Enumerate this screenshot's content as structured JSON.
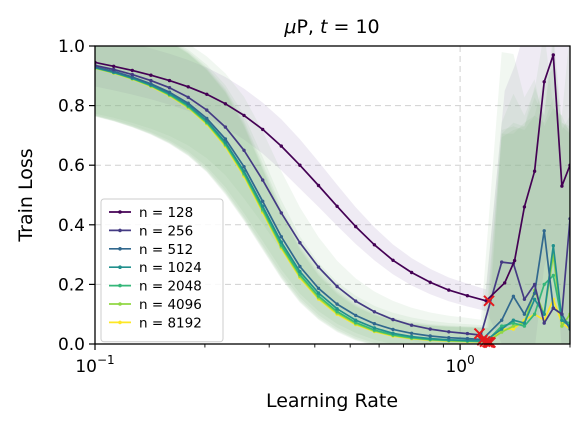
{
  "chart_data": {
    "type": "line",
    "title": "μP, t = 10",
    "title_parts": {
      "symbol": "μ",
      "rest": "P, ",
      "var": "t",
      "eq": " = 10"
    },
    "xlabel": "Learning Rate",
    "ylabel": "Train Loss",
    "xscale": "log",
    "xlim": [
      0.1,
      2.0
    ],
    "ylim": [
      0.0,
      1.0
    ],
    "xticks_major": [
      {
        "value": 0.1,
        "base": "10",
        "exp": "−1"
      },
      {
        "value": 1.0,
        "base": "10",
        "exp": "0"
      }
    ],
    "yticks": [
      "0.0",
      "0.2",
      "0.4",
      "0.6",
      "0.8",
      "1.0"
    ],
    "grid": true,
    "legend_position": "lower-left",
    "divergence_marker_color": "#e41a1c",
    "band_color": "#8fbf8f",
    "series": [
      {
        "name": "n = 128",
        "color": "#440154",
        "x": [
          0.1,
          0.1125,
          0.1265,
          0.1423,
          0.16,
          0.18,
          0.2024,
          0.2276,
          0.256,
          0.2879,
          0.3237,
          0.364,
          0.4094,
          0.4604,
          0.5178,
          0.5823,
          0.6548,
          0.7364,
          0.8282,
          0.9314,
          1.047,
          1.178,
          1.325,
          1.41,
          1.5,
          1.6,
          1.7,
          1.8,
          1.9,
          2.0
        ],
        "y": [
          0.945,
          0.932,
          0.918,
          0.902,
          0.884,
          0.863,
          0.838,
          0.806,
          0.767,
          0.72,
          0.664,
          0.6,
          0.532,
          0.462,
          0.394,
          0.333,
          0.281,
          0.24,
          0.207,
          0.181,
          0.162,
          0.145,
          0.205,
          0.28,
          0.46,
          0.58,
          0.88,
          0.97,
          0.53,
          0.6
        ],
        "diverge": {
          "x": 1.2,
          "y": 0.145
        }
      },
      {
        "name": "n = 256",
        "color": "#443a83",
        "x": [
          0.1,
          0.1125,
          0.1265,
          0.1423,
          0.16,
          0.18,
          0.2024,
          0.2276,
          0.256,
          0.2879,
          0.3237,
          0.364,
          0.4094,
          0.4604,
          0.5178,
          0.5823,
          0.6548,
          0.7364,
          0.8282,
          0.9314,
          1.047,
          1.14,
          1.3,
          1.4,
          1.5,
          1.6,
          1.7,
          1.8,
          1.9,
          2.0
        ],
        "y": [
          0.935,
          0.921,
          0.904,
          0.884,
          0.86,
          0.828,
          0.785,
          0.728,
          0.65,
          0.55,
          0.44,
          0.34,
          0.258,
          0.193,
          0.144,
          0.108,
          0.082,
          0.063,
          0.05,
          0.041,
          0.035,
          0.03,
          0.275,
          0.27,
          0.15,
          0.2,
          0.07,
          0.12,
          0.1,
          0.42
        ],
        "diverge": {
          "x": 1.13,
          "y": 0.035
        }
      },
      {
        "name": "n = 512",
        "color": "#31688e",
        "x": [
          0.1,
          0.1125,
          0.1265,
          0.1423,
          0.16,
          0.18,
          0.2024,
          0.2276,
          0.256,
          0.2879,
          0.3237,
          0.364,
          0.4094,
          0.4604,
          0.5178,
          0.5823,
          0.6548,
          0.7364,
          0.8282,
          0.9314,
          1.047,
          1.15,
          1.3,
          1.4,
          1.5,
          1.6,
          1.7,
          1.8,
          1.9,
          2.0
        ],
        "y": [
          0.93,
          0.915,
          0.896,
          0.873,
          0.845,
          0.808,
          0.757,
          0.688,
          0.595,
          0.479,
          0.36,
          0.26,
          0.187,
          0.134,
          0.096,
          0.068,
          0.049,
          0.036,
          0.027,
          0.021,
          0.018,
          0.015,
          0.08,
          0.16,
          0.1,
          0.17,
          0.38,
          0.12,
          0.1,
          0.05
        ],
        "diverge": {
          "x": 1.15,
          "y": 0.013
        }
      },
      {
        "name": "n = 1024",
        "color": "#21908d",
        "x": [
          0.1,
          0.1125,
          0.1265,
          0.1423,
          0.16,
          0.18,
          0.2024,
          0.2276,
          0.256,
          0.2879,
          0.3237,
          0.364,
          0.4094,
          0.4604,
          0.5178,
          0.5823,
          0.6548,
          0.7364,
          0.8282,
          0.9314,
          1.047,
          1.17,
          1.3,
          1.4,
          1.5,
          1.6,
          1.7,
          1.8,
          1.9,
          2.0
        ],
        "y": [
          0.928,
          0.912,
          0.893,
          0.869,
          0.84,
          0.802,
          0.749,
          0.677,
          0.58,
          0.462,
          0.342,
          0.243,
          0.171,
          0.118,
          0.08,
          0.054,
          0.036,
          0.025,
          0.018,
          0.014,
          0.012,
          0.01,
          0.05,
          0.08,
          0.07,
          0.15,
          0.1,
          0.33,
          0.08,
          0.06
        ],
        "diverge": {
          "x": 1.17,
          "y": 0.008
        }
      },
      {
        "name": "n = 2048",
        "color": "#35b779",
        "x": [
          0.1,
          0.1125,
          0.1265,
          0.1423,
          0.16,
          0.18,
          0.2024,
          0.2276,
          0.256,
          0.2879,
          0.3237,
          0.364,
          0.4094,
          0.4604,
          0.5178,
          0.5823,
          0.6548,
          0.7364,
          0.8282,
          0.9314,
          1.047,
          1.18,
          1.3,
          1.4,
          1.5,
          1.6,
          1.7,
          1.8,
          1.9,
          2.0
        ],
        "y": [
          0.927,
          0.911,
          0.891,
          0.867,
          0.837,
          0.798,
          0.744,
          0.671,
          0.573,
          0.453,
          0.332,
          0.233,
          0.161,
          0.109,
          0.072,
          0.047,
          0.031,
          0.021,
          0.015,
          0.012,
          0.01,
          0.008,
          0.06,
          0.07,
          0.06,
          0.1,
          0.2,
          0.23,
          0.08,
          0.07
        ],
        "diverge": {
          "x": 1.19,
          "y": 0.006
        }
      },
      {
        "name": "n = 4096",
        "color": "#90d743",
        "x": [
          0.1,
          0.1125,
          0.1265,
          0.1423,
          0.16,
          0.18,
          0.2024,
          0.2276,
          0.256,
          0.2879,
          0.3237,
          0.364,
          0.4094,
          0.4604,
          0.5178,
          0.5823,
          0.6548,
          0.7364,
          0.8282,
          0.9314,
          1.047,
          1.19,
          1.3,
          1.4,
          1.5,
          1.6,
          1.7,
          1.8,
          1.9,
          2.0
        ],
        "y": [
          0.926,
          0.91,
          0.89,
          0.866,
          0.835,
          0.795,
          0.741,
          0.667,
          0.568,
          0.447,
          0.326,
          0.227,
          0.155,
          0.104,
          0.068,
          0.044,
          0.029,
          0.019,
          0.014,
          0.011,
          0.009,
          0.008,
          0.04,
          0.06,
          0.07,
          0.18,
          0.1,
          0.3,
          0.06,
          0.1
        ],
        "diverge": {
          "x": 1.2,
          "y": 0.005
        }
      },
      {
        "name": "n = 8192",
        "color": "#fde725",
        "x": [
          0.1,
          0.1125,
          0.1265,
          0.1423,
          0.16,
          0.18,
          0.2024,
          0.2276,
          0.256,
          0.2879,
          0.3237,
          0.364,
          0.4094,
          0.4604,
          0.5178,
          0.5823,
          0.6548,
          0.7364,
          0.8282,
          0.9314,
          1.047,
          1.2,
          1.3,
          1.4,
          1.5,
          1.6,
          1.7,
          1.8,
          1.9,
          2.0
        ],
        "y": [
          0.925,
          0.909,
          0.889,
          0.864,
          0.833,
          0.793,
          0.738,
          0.663,
          0.563,
          0.442,
          0.321,
          0.222,
          0.151,
          0.1,
          0.065,
          0.042,
          0.027,
          0.018,
          0.013,
          0.01,
          0.008,
          0.007,
          0.05,
          0.05,
          0.08,
          0.1,
          0.08,
          0.15,
          0.07,
          0.05
        ],
        "diverge": {
          "x": 1.21,
          "y": 0.005
        }
      }
    ]
  }
}
